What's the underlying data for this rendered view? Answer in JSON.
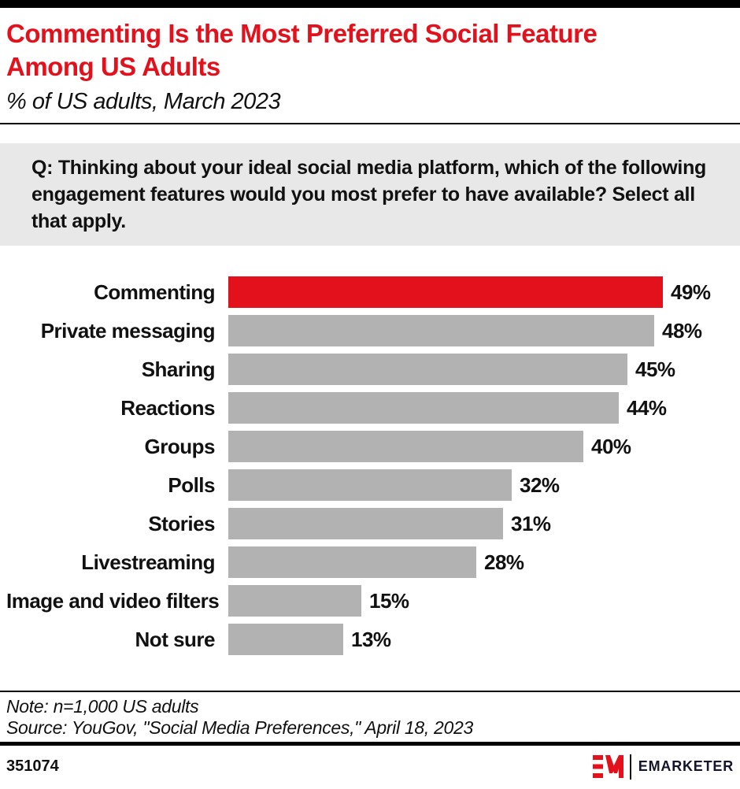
{
  "header": {
    "title_line1": "Commenting Is the Most Preferred Social Feature",
    "title_line2": "Among US Adults",
    "subtitle": "% of US adults, March 2023"
  },
  "question": "Q: Thinking about your ideal social media platform, which of the following engagement features would you most prefer to have available? Select all that apply.",
  "chart_data": {
    "type": "bar",
    "orientation": "horizontal",
    "title": "Commenting Is the Most Preferred Social Feature Among US Adults",
    "subtitle": "% of US adults, March 2023",
    "categories": [
      "Commenting",
      "Private messaging",
      "Sharing",
      "Reactions",
      "Groups",
      "Polls",
      "Stories",
      "Livestreaming",
      "Image and video filters",
      "Not sure"
    ],
    "values": [
      49,
      48,
      45,
      44,
      40,
      32,
      31,
      28,
      15,
      13
    ],
    "value_suffix": "%",
    "xlim": [
      0,
      49
    ],
    "highlight_index": 0,
    "grid": false,
    "legend": false
  },
  "colors": {
    "accent_red": "#e2111b",
    "bar_gray": "#b2b2b2",
    "question_box_gray": "#e8e8e8",
    "text_black": "#111111",
    "brand_dark": "#14142b"
  },
  "notes": {
    "note": "Note: n=1,000 US adults",
    "source": "Source: YouGov, \"Social Media Preferences,\" April 18, 2023"
  },
  "footer": {
    "chart_id": "351074",
    "brand_name": "EMARKETER"
  }
}
